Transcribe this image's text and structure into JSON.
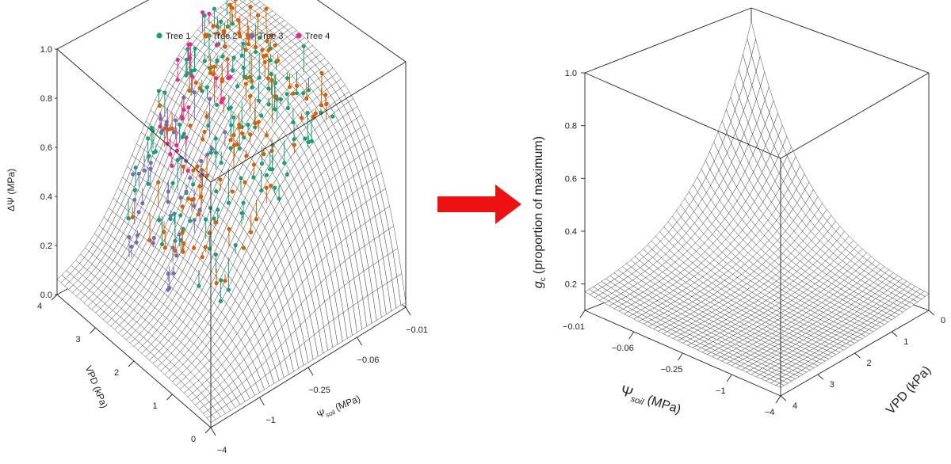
{
  "chart_data": [
    {
      "type": "scatter",
      "subtype": "3d-surface-with-points",
      "legend": [
        {
          "name": "Tree 1",
          "color": "#1b9e77"
        },
        {
          "name": "Tree 2",
          "color": "#d95f02"
        },
        {
          "name": "Tree 3",
          "color": "#7570b3"
        },
        {
          "name": "Tree 4",
          "color": "#e7298a"
        }
      ],
      "legend_position": "top",
      "zlabel": "ΔΨ (MPa)",
      "zticks": [
        "0.0",
        "0.2",
        "0.4",
        "0.6",
        "0.8",
        "1.0"
      ],
      "zlim": [
        0,
        1
      ],
      "ylabel": "VPD (kPa)",
      "yticks": [
        "0",
        "1",
        "2",
        "3",
        "4"
      ],
      "xlabel_main": "Ψ",
      "xlabel_sub": "soil",
      "xlabel_unit": "(MPa)",
      "xticks": [
        "−4",
        "−1",
        "−0.25",
        "−0.06",
        "−0.01"
      ],
      "surface_grid": [
        40,
        40
      ],
      "points_per_tree": [
        140,
        120,
        45,
        25
      ]
    },
    {
      "type": "area",
      "subtype": "3d-surface",
      "zlabel_main": "g",
      "zlabel_sub": "c",
      "zlabel_rest": "(proportion of maximum)",
      "zticks": [
        "0.2",
        "0.4",
        "0.6",
        "0.8",
        "1.0"
      ],
      "zlim": [
        0.1,
        1.0
      ],
      "xlabel_main": "Ψ",
      "xlabel_sub": "soil",
      "xlabel_unit": "(MPa)",
      "xticks": [
        "−0.01",
        "−0.06",
        "−0.25",
        "−1",
        "−4"
      ],
      "ylabel": "VPD (kPa)",
      "yticks": [
        "0",
        "1",
        "2",
        "3",
        "4"
      ],
      "surface_grid": [
        40,
        40
      ]
    }
  ],
  "arrow": {
    "color": "#ee1111"
  }
}
